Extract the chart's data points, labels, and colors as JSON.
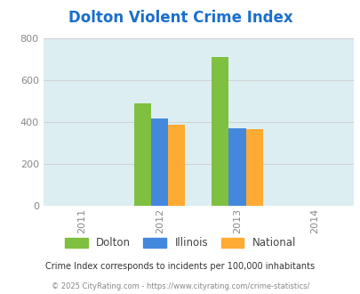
{
  "title": "Dolton Violent Crime Index",
  "years": [
    2011,
    2012,
    2013,
    2014
  ],
  "bar_data": {
    "2012": {
      "Dolton": 490,
      "Illinois": 418,
      "National": 387
    },
    "2013": {
      "Dolton": 710,
      "Illinois": 372,
      "National": 367
    }
  },
  "colors": {
    "Dolton": "#80c040",
    "Illinois": "#4488dd",
    "National": "#ffaa33"
  },
  "ylim": [
    0,
    800
  ],
  "yticks": [
    0,
    200,
    400,
    600,
    800
  ],
  "xlim": [
    2010.5,
    2014.5
  ],
  "bg_color": "#dceef2",
  "title_color": "#1a6fcc",
  "footnote1": "Crime Index corresponds to incidents per 100,000 inhabitants",
  "footnote2": "© 2025 CityRating.com - https://www.cityrating.com/crime-statistics/",
  "bar_width": 0.22,
  "legend_labels": [
    "Dolton",
    "Illinois",
    "National"
  ]
}
